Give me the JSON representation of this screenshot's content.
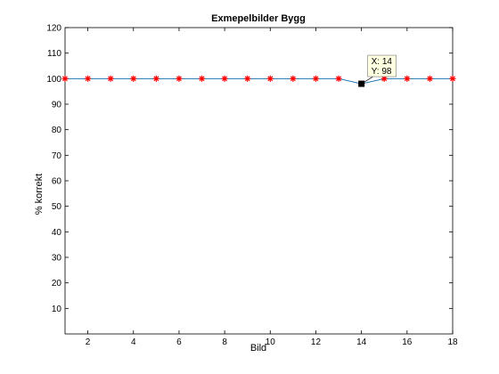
{
  "chart_data": {
    "type": "line",
    "title": "Exmepelbilder Bygg",
    "xlabel": "Bild",
    "ylabel": "% korrekt",
    "xlim": [
      1,
      18
    ],
    "ylim": [
      0,
      120
    ],
    "xticks": [
      2,
      4,
      6,
      8,
      10,
      12,
      14,
      16,
      18
    ],
    "yticks": [
      10,
      20,
      30,
      40,
      50,
      60,
      70,
      80,
      90,
      100,
      110,
      120
    ],
    "grid": false,
    "series": [
      {
        "x": [
          1,
          2,
          3,
          4,
          5,
          6,
          7,
          8,
          9,
          10,
          11,
          12,
          13,
          14,
          15,
          16,
          17,
          18
        ],
        "y": [
          100,
          100,
          100,
          100,
          100,
          100,
          100,
          100,
          100,
          100,
          100,
          100,
          100,
          98,
          100,
          100,
          100,
          100
        ],
        "line_color": "#1f77b4",
        "marker_color": "#ff0000",
        "marker": "asterisk"
      }
    ],
    "datatip": {
      "x": 14,
      "y": 98,
      "x_text": "X: 14",
      "y_text": "Y: 98"
    }
  }
}
